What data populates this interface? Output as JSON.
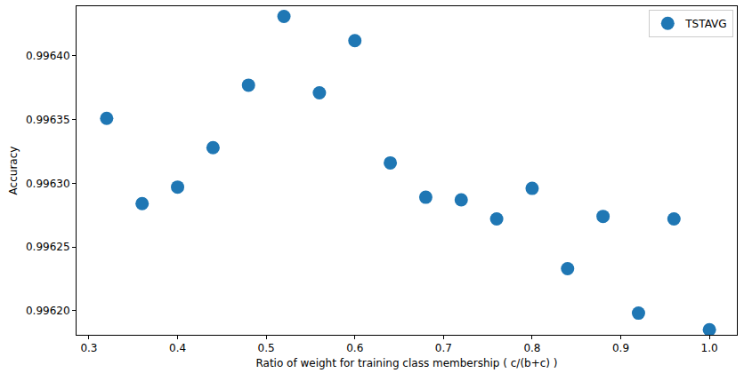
{
  "chart_data": {
    "type": "scatter",
    "x_label": "Ratio of weight for training class membership ( c/(b+c) )",
    "y_label": "Accuracy",
    "series": [
      {
        "name": "TSTAVG",
        "color": "#1f77b4",
        "marker": "circle",
        "x": [
          0.32,
          0.36,
          0.4,
          0.44,
          0.48,
          0.52,
          0.56,
          0.6,
          0.64,
          0.68,
          0.72,
          0.76,
          0.8,
          0.84,
          0.88,
          0.92,
          0.96,
          1.0
        ],
        "values": [
          0.996351,
          0.996284,
          0.996297,
          0.996328,
          0.996377,
          0.996431,
          0.996371,
          0.996412,
          0.996316,
          0.996289,
          0.996287,
          0.996272,
          0.996296,
          0.996233,
          0.996274,
          0.996198,
          0.996272,
          0.996185
        ]
      }
    ],
    "xlim": [
      0.286,
      1.031
    ],
    "xticks": [
      0.3,
      0.4,
      0.5,
      0.6,
      0.7,
      0.8,
      0.9,
      {
        "value": 1,
        "label": "1.0"
      }
    ],
    "ylim": [
      0.996181,
      0.996439
    ],
    "yticks": [
      {
        "value": 0.9962,
        "label": "0.99620"
      },
      0.99625,
      {
        "value": 0.9963,
        "label": "0.99630"
      },
      0.99635,
      {
        "value": 0.9964,
        "label": "0.99640"
      }
    ],
    "legend": "upper right",
    "grid": false
  }
}
